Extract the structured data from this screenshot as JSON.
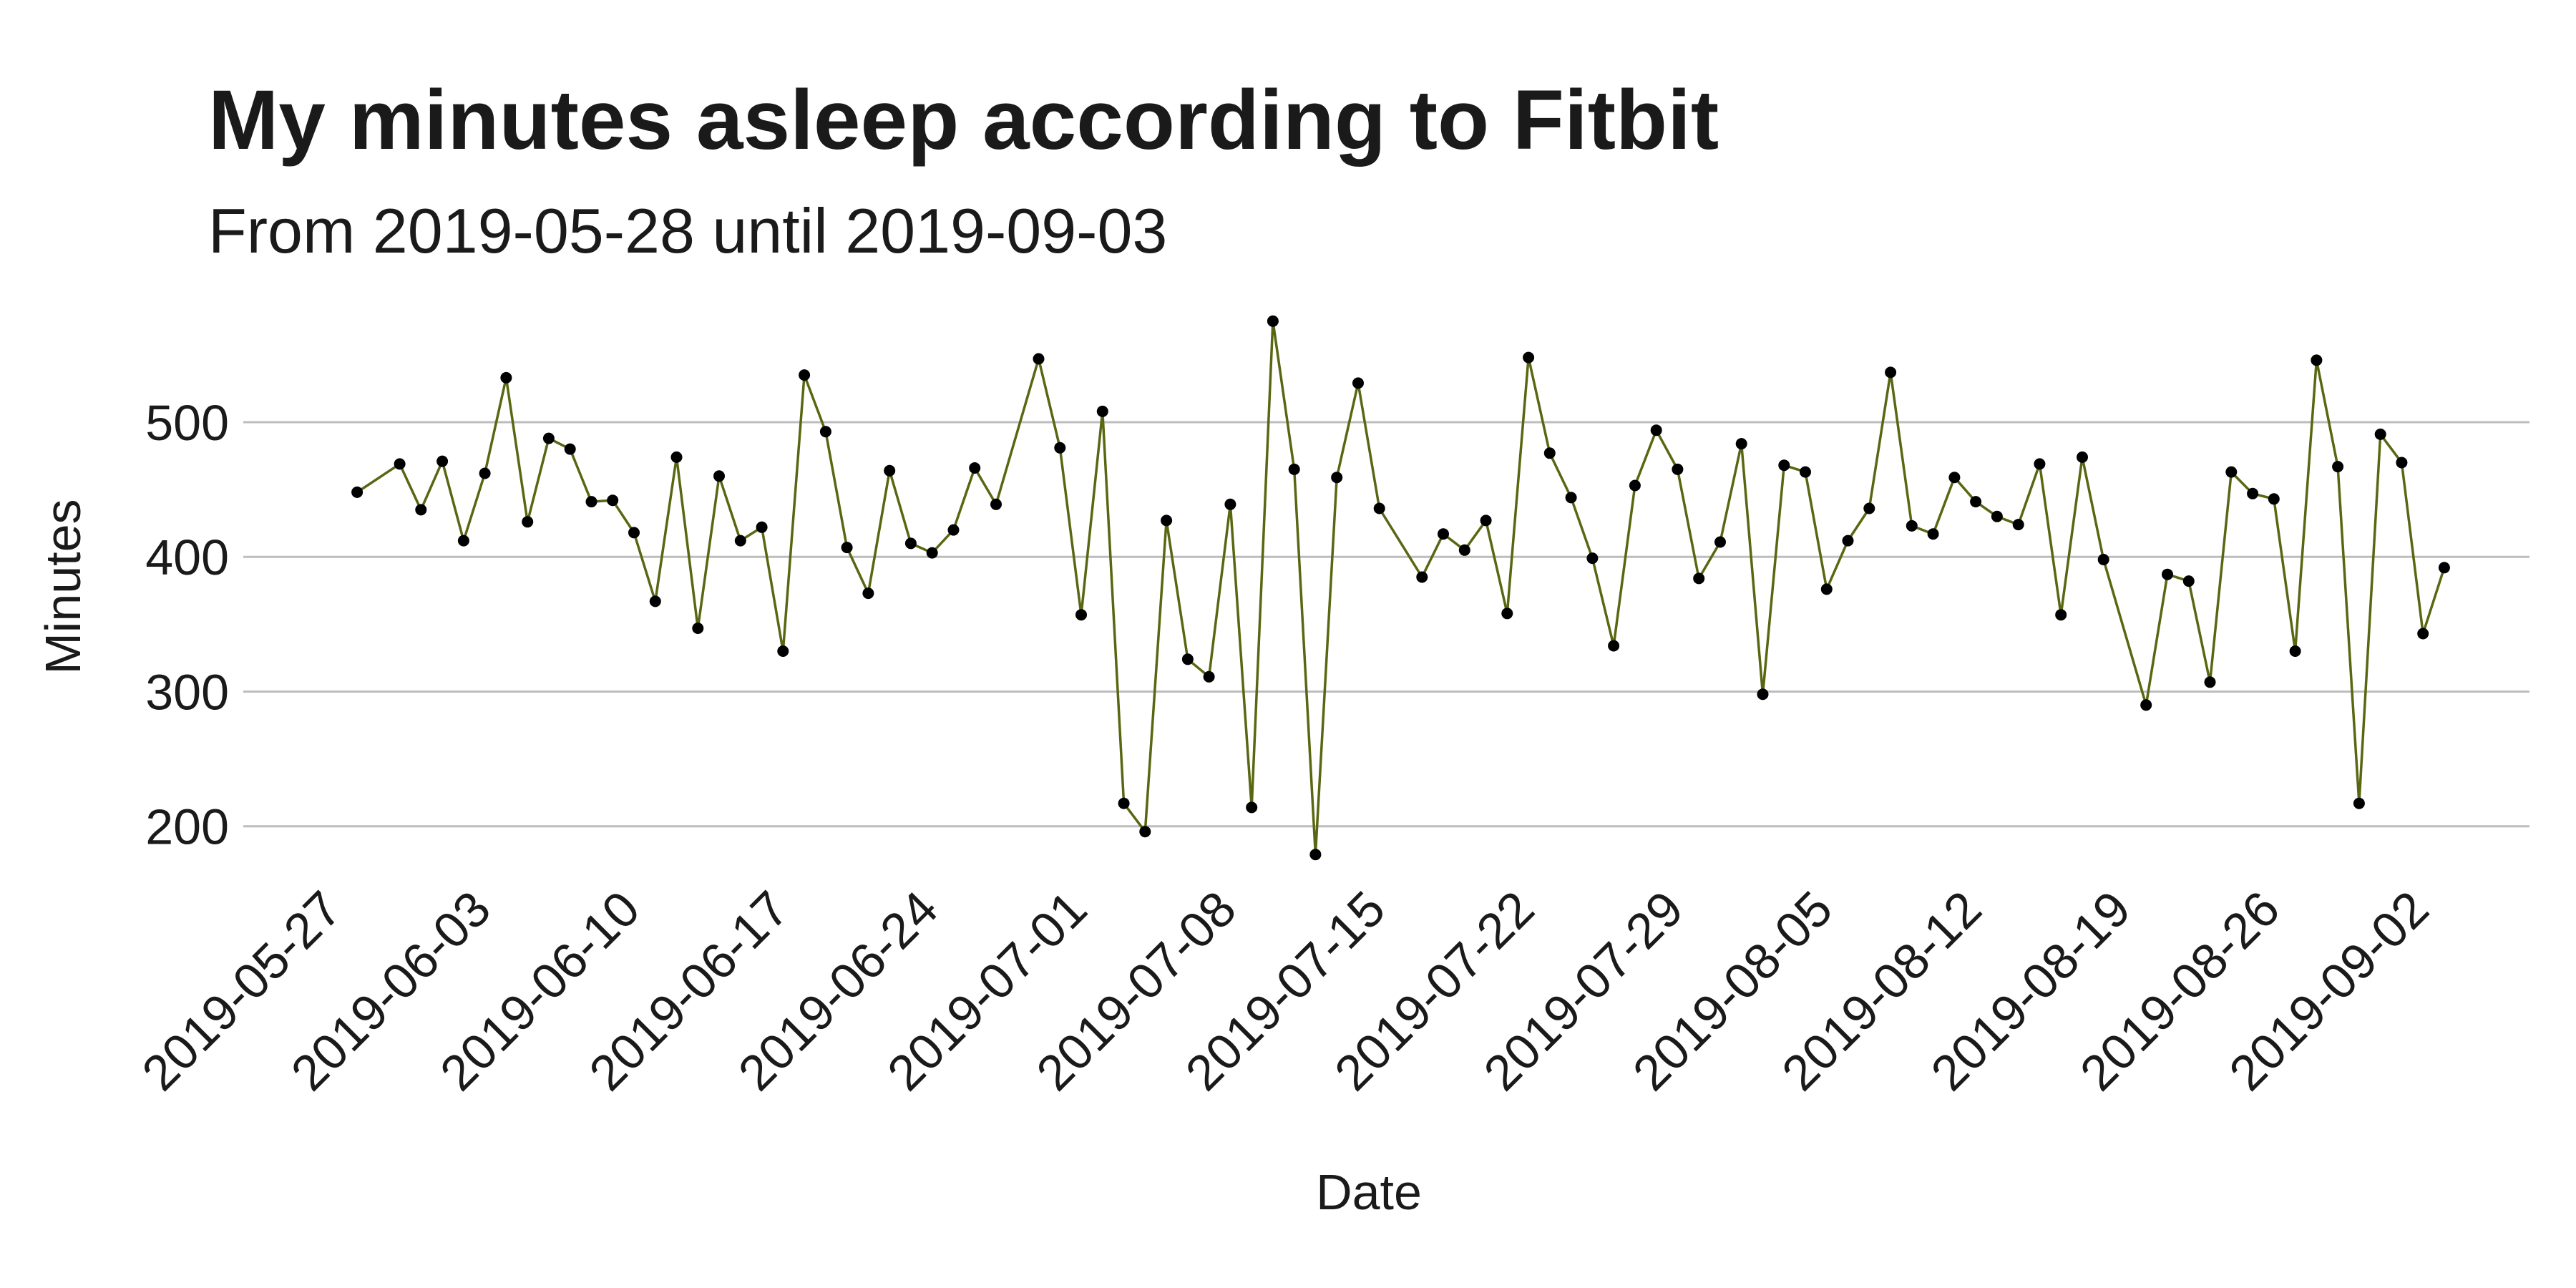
{
  "chart_data": {
    "type": "line",
    "title": "My minutes asleep according to Fitbit",
    "subtitle": "From 2019-05-28 until 2019-09-03",
    "xlabel": "Date",
    "ylabel": "Minutes",
    "xlim": [
      "2019-05-24",
      "2019-09-07"
    ],
    "ylim": [
      160,
      585
    ],
    "y_ticks": [
      200,
      300,
      400,
      500
    ],
    "x_ticks": [
      "2019-05-27",
      "2019-06-03",
      "2019-06-10",
      "2019-06-17",
      "2019-06-24",
      "2019-07-01",
      "2019-07-08",
      "2019-07-15",
      "2019-07-22",
      "2019-07-29",
      "2019-08-05",
      "2019-08-12",
      "2019-08-19",
      "2019-08-26",
      "2019-09-02"
    ],
    "grid": "horizontal major",
    "legend": "none",
    "line_color": "#5a6611",
    "point_color": "#000000",
    "x": [
      "2019-05-28",
      "2019-05-30",
      "2019-05-31",
      "2019-06-01",
      "2019-06-02",
      "2019-06-03",
      "2019-06-04",
      "2019-06-05",
      "2019-06-06",
      "2019-06-07",
      "2019-06-08",
      "2019-06-09",
      "2019-06-10",
      "2019-06-11",
      "2019-06-12",
      "2019-06-13",
      "2019-06-14",
      "2019-06-15",
      "2019-06-16",
      "2019-06-17",
      "2019-06-18",
      "2019-06-19",
      "2019-06-20",
      "2019-06-21",
      "2019-06-22",
      "2019-06-23",
      "2019-06-24",
      "2019-06-25",
      "2019-06-26",
      "2019-06-27",
      "2019-06-29",
      "2019-06-30",
      "2019-07-01",
      "2019-07-02",
      "2019-07-03",
      "2019-07-04",
      "2019-07-05",
      "2019-07-06",
      "2019-07-07",
      "2019-07-08",
      "2019-07-09",
      "2019-07-10",
      "2019-07-11",
      "2019-07-12",
      "2019-07-13",
      "2019-07-14",
      "2019-07-15",
      "2019-07-17",
      "2019-07-18",
      "2019-07-19",
      "2019-07-20",
      "2019-07-21",
      "2019-07-22",
      "2019-07-23",
      "2019-07-24",
      "2019-07-25",
      "2019-07-26",
      "2019-07-27",
      "2019-07-28",
      "2019-07-29",
      "2019-07-30",
      "2019-07-31",
      "2019-08-01",
      "2019-08-02",
      "2019-08-03",
      "2019-08-04",
      "2019-08-05",
      "2019-08-06",
      "2019-08-07",
      "2019-08-08",
      "2019-08-09",
      "2019-08-10",
      "2019-08-11",
      "2019-08-12",
      "2019-08-13",
      "2019-08-14",
      "2019-08-15",
      "2019-08-16",
      "2019-08-17",
      "2019-08-18",
      "2019-08-20",
      "2019-08-21",
      "2019-08-22",
      "2019-08-23",
      "2019-08-24",
      "2019-08-25",
      "2019-08-26",
      "2019-08-27",
      "2019-08-28",
      "2019-08-29",
      "2019-08-30",
      "2019-08-31",
      "2019-09-01",
      "2019-09-02",
      "2019-09-03"
    ],
    "series": [
      {
        "values": [
          448,
          469,
          435,
          471,
          412,
          462,
          533,
          426,
          488,
          480,
          441,
          442,
          418,
          367,
          474,
          347,
          460,
          412,
          422,
          330,
          535,
          493,
          407,
          373,
          464,
          410,
          403,
          420,
          466,
          439,
          547,
          481,
          357,
          508,
          217,
          196,
          427,
          324,
          311,
          439,
          214,
          575,
          465,
          179,
          459,
          529,
          436,
          385,
          417,
          405,
          427,
          358,
          548,
          477,
          444,
          399,
          334,
          453,
          494,
          465,
          384,
          411,
          484,
          298,
          468,
          463,
          376,
          412,
          436,
          537,
          423,
          417,
          459,
          441,
          430,
          424,
          469,
          357,
          474,
          398,
          290,
          387,
          382,
          307,
          463,
          447,
          443,
          330,
          546,
          467,
          217,
          491,
          470,
          343,
          392
        ]
      }
    ]
  }
}
